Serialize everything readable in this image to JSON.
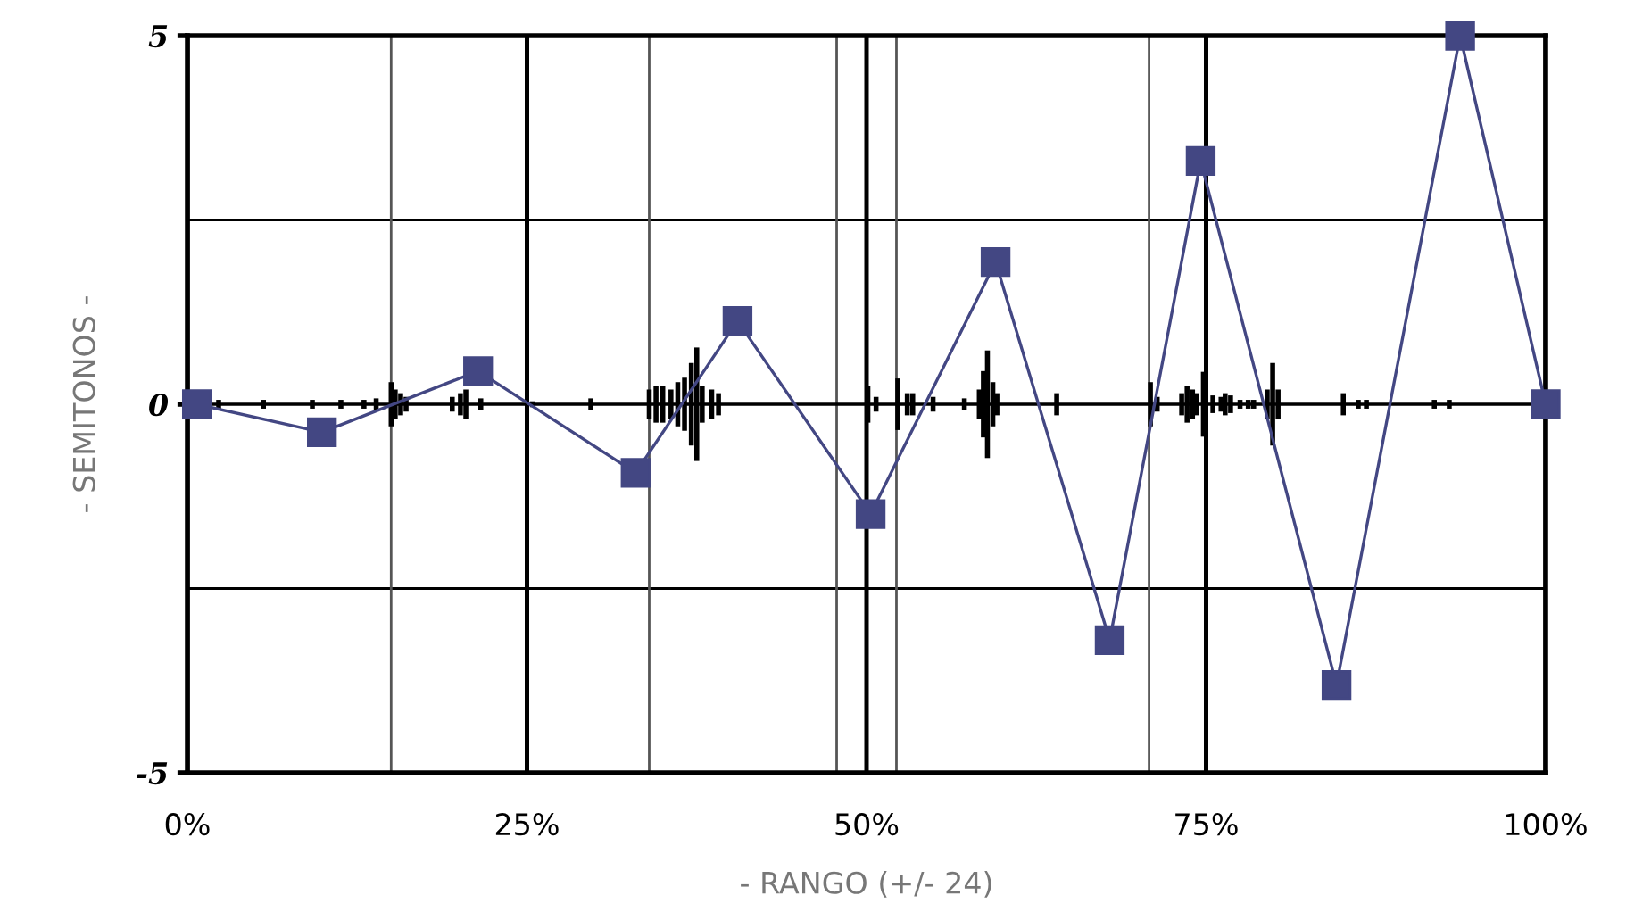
{
  "chart_data": {
    "type": "line",
    "xlabel": "- RANGO (+/- 24)",
    "ylabel": "- SEMITONOS -",
    "xlim": [
      0,
      100
    ],
    "ylim": [
      -5,
      5
    ],
    "xticks": [
      {
        "value": 0,
        "label": "0%"
      },
      {
        "value": 25,
        "label": "25%"
      },
      {
        "value": 50,
        "label": "50%"
      },
      {
        "value": 75,
        "label": "75%"
      },
      {
        "value": 100,
        "label": "100%"
      }
    ],
    "yticks": [
      5,
      0,
      -5
    ],
    "grid": "x",
    "legend": false,
    "ref_lines": [
      {
        "axis": "y",
        "value": 2.5,
        "color": "#000000"
      },
      {
        "axis": "y",
        "value": -2.5,
        "color": "#000000"
      },
      {
        "axis": "x",
        "value": 15.0,
        "color": "#555555"
      },
      {
        "axis": "x",
        "value": 34.0,
        "color": "#555555"
      },
      {
        "axis": "x",
        "value": 47.8,
        "color": "#555555"
      },
      {
        "axis": "x",
        "value": 52.2,
        "color": "#555555"
      },
      {
        "axis": "x",
        "value": 70.8,
        "color": "#555555"
      }
    ],
    "series": [
      {
        "color": "#000000",
        "marker": "none",
        "x": [
          0,
          2.3,
          5.6,
          9.2,
          11.3,
          13.0,
          13.9,
          15.0,
          15.3,
          15.7,
          16.1,
          19.5,
          20.1,
          20.5,
          21.6,
          25.4,
          29.7,
          34.0,
          34.5,
          35.0,
          35.6,
          36.1,
          36.6,
          37.1,
          37.5,
          37.9,
          38.6,
          39.1,
          50.1,
          50.7,
          52.3,
          53.0,
          53.4,
          54.9,
          57.2,
          58.3,
          58.6,
          58.9,
          59.3,
          59.6,
          64.0,
          70.9,
          71.4,
          73.2,
          73.6,
          74.0,
          74.3,
          74.8,
          75.5,
          76.1,
          76.4,
          76.8,
          77.5,
          78.1,
          78.5,
          79.5,
          79.9,
          80.3,
          85.1,
          86.2,
          86.8,
          91.8,
          92.9,
          100
        ],
        "values": [
          0,
          0,
          0,
          0,
          0,
          0,
          0,
          0,
          0,
          0,
          0,
          0,
          0,
          0,
          0,
          0,
          0,
          0,
          0,
          0,
          0,
          0,
          0,
          0,
          0,
          0,
          0,
          0,
          0,
          0,
          0,
          0,
          0,
          0,
          0,
          0,
          0,
          0,
          0,
          0,
          0,
          0,
          0,
          0,
          0,
          0,
          0,
          0,
          0,
          0,
          0,
          0,
          0,
          0,
          0,
          0,
          0,
          0,
          0,
          0,
          0,
          0,
          0,
          0
        ],
        "errors": [
          null,
          0.06,
          0.06,
          0.06,
          0.06,
          0.06,
          0.08,
          0.3,
          0.2,
          0.15,
          0.1,
          0.1,
          0.15,
          0.2,
          0.08,
          0.04,
          0.08,
          0.2,
          0.25,
          0.25,
          0.2,
          0.3,
          0.36,
          0.56,
          0.77,
          0.25,
          0.2,
          0.15,
          0.25,
          0.1,
          0.35,
          0.15,
          0.15,
          0.1,
          0.08,
          0.2,
          0.45,
          0.73,
          0.3,
          0.15,
          0.15,
          0.3,
          0.1,
          0.15,
          0.25,
          0.2,
          0.15,
          0.44,
          0.12,
          0.1,
          0.15,
          0.12,
          0.06,
          0.06,
          0.06,
          0.2,
          0.56,
          0.2,
          0.15,
          0.06,
          0.06,
          0.06,
          0.06,
          null
        ]
      },
      {
        "color": "#434783",
        "marker": "square",
        "x": [
          0.7,
          9.9,
          21.4,
          33.0,
          40.5,
          50.3,
          59.5,
          67.9,
          74.6,
          84.6,
          93.7,
          100
        ],
        "values": [
          0,
          -0.38,
          0.45,
          -0.93,
          1.13,
          -1.49,
          1.93,
          -3.2,
          3.3,
          -3.81,
          5.0,
          0
        ]
      }
    ]
  }
}
